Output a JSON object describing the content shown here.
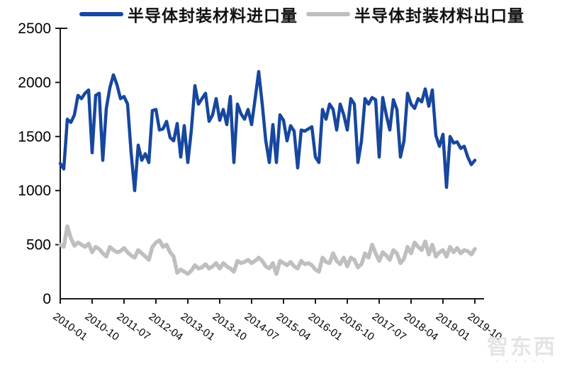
{
  "legend": [
    {
      "label": "半导体封装材料进口量",
      "color": "#17479E"
    },
    {
      "label": "半导体封装材料出口量",
      "color": "#BFBFBF"
    }
  ],
  "watermark": {
    "text": "智东西"
  },
  "colors": {
    "axis": "#1a1a1a",
    "import_line": "#17479E",
    "export_line": "#BFBFBF"
  },
  "chart_data": {
    "type": "line",
    "title": "",
    "xlabel": "",
    "ylabel": "",
    "ylim": [
      0,
      2500
    ],
    "y_ticks": [
      0,
      500,
      1000,
      1500,
      2000,
      2500
    ],
    "grid": false,
    "legend_position": "top-center",
    "x_tick_labels": [
      "2010-01",
      "2010-10",
      "2011-07",
      "2012-04",
      "2013-01",
      "2013-10",
      "2014-07",
      "2015-04",
      "2016-01",
      "2016-10",
      "2017-07",
      "2018-04",
      "2019-01",
      "2019-10"
    ],
    "x_tick_interval_months": 9,
    "categories": [
      "2010-01",
      "2010-02",
      "2010-03",
      "2010-04",
      "2010-05",
      "2010-06",
      "2010-07",
      "2010-08",
      "2010-09",
      "2010-10",
      "2010-11",
      "2010-12",
      "2011-01",
      "2011-02",
      "2011-03",
      "2011-04",
      "2011-05",
      "2011-06",
      "2011-07",
      "2011-08",
      "2011-09",
      "2011-10",
      "2011-11",
      "2011-12",
      "2012-01",
      "2012-02",
      "2012-03",
      "2012-04",
      "2012-05",
      "2012-06",
      "2012-07",
      "2012-08",
      "2012-09",
      "2012-10",
      "2012-11",
      "2012-12",
      "2013-01",
      "2013-02",
      "2013-03",
      "2013-04",
      "2013-05",
      "2013-06",
      "2013-07",
      "2013-08",
      "2013-09",
      "2013-10",
      "2013-11",
      "2013-12",
      "2014-01",
      "2014-02",
      "2014-03",
      "2014-04",
      "2014-05",
      "2014-06",
      "2014-07",
      "2014-08",
      "2014-09",
      "2014-10",
      "2014-11",
      "2014-12",
      "2015-01",
      "2015-02",
      "2015-03",
      "2015-04",
      "2015-05",
      "2015-06",
      "2015-07",
      "2015-08",
      "2015-09",
      "2015-10",
      "2015-11",
      "2015-12",
      "2016-01",
      "2016-02",
      "2016-03",
      "2016-04",
      "2016-05",
      "2016-06",
      "2016-07",
      "2016-08",
      "2016-09",
      "2016-10",
      "2016-11",
      "2016-12",
      "2017-01",
      "2017-02",
      "2017-03",
      "2017-04",
      "2017-05",
      "2017-06",
      "2017-07",
      "2017-08",
      "2017-09",
      "2017-10",
      "2017-11",
      "2017-12",
      "2018-01",
      "2018-02",
      "2018-03",
      "2018-04",
      "2018-05",
      "2018-06",
      "2018-07",
      "2018-08",
      "2018-09",
      "2018-10",
      "2018-11",
      "2018-12",
      "2019-01",
      "2019-02",
      "2019-03",
      "2019-04",
      "2019-05",
      "2019-06",
      "2019-07",
      "2019-08",
      "2019-09",
      "2019-10"
    ],
    "series": [
      {
        "name": "半导体封装材料进口量",
        "color": "#17479E",
        "values": [
          1250,
          1200,
          1660,
          1630,
          1700,
          1880,
          1850,
          1900,
          1930,
          1350,
          1880,
          1900,
          1280,
          1760,
          1950,
          2070,
          1980,
          1850,
          1870,
          1800,
          1350,
          1000,
          1420,
          1280,
          1340,
          1260,
          1740,
          1750,
          1560,
          1570,
          1640,
          1490,
          1460,
          1620,
          1310,
          1600,
          1260,
          1560,
          1970,
          1800,
          1850,
          1900,
          1640,
          1700,
          1850,
          1650,
          1750,
          1610,
          1870,
          1260,
          1800,
          1710,
          1660,
          1750,
          1610,
          1850,
          2100,
          1800,
          1460,
          1260,
          1610,
          1260,
          1700,
          1650,
          1460,
          1600,
          1550,
          1210,
          1560,
          1550,
          1570,
          1590,
          1310,
          1260,
          1750,
          1660,
          1800,
          1750,
          1560,
          1800,
          1700,
          1560,
          1850,
          1800,
          1260,
          1460,
          1850,
          1800,
          1860,
          1840,
          1310,
          1860,
          1700,
          1560,
          1840,
          1750,
          1310,
          1460,
          1900,
          1800,
          1760,
          1850,
          1820,
          1940,
          1780,
          1930,
          1510,
          1410,
          1520,
          1030,
          1500,
          1440,
          1450,
          1390,
          1410,
          1310,
          1240,
          1280
        ]
      },
      {
        "name": "半导体封装材料出口量",
        "color": "#BFBFBF",
        "values": [
          500,
          480,
          670,
          560,
          490,
          520,
          500,
          480,
          510,
          430,
          480,
          460,
          420,
          390,
          480,
          450,
          430,
          440,
          470,
          430,
          400,
          380,
          450,
          420,
          390,
          360,
          480,
          520,
          540,
          480,
          500,
          430,
          390,
          240,
          270,
          250,
          230,
          260,
          310,
          280,
          290,
          320,
          280,
          300,
          330,
          280,
          330,
          300,
          280,
          250,
          350,
          330,
          340,
          360,
          330,
          350,
          380,
          350,
          300,
          280,
          330,
          230,
          350,
          330,
          310,
          340,
          300,
          280,
          350,
          320,
          330,
          310,
          270,
          250,
          380,
          340,
          330,
          420,
          350,
          320,
          380,
          300,
          380,
          360,
          290,
          320,
          420,
          380,
          500,
          420,
          350,
          430,
          400,
          360,
          450,
          420,
          330,
          370,
          480,
          420,
          520,
          480,
          450,
          530,
          410,
          500,
          390,
          430,
          450,
          390,
          480,
          430,
          470,
          420,
          450,
          440,
          410,
          460
        ]
      }
    ]
  }
}
